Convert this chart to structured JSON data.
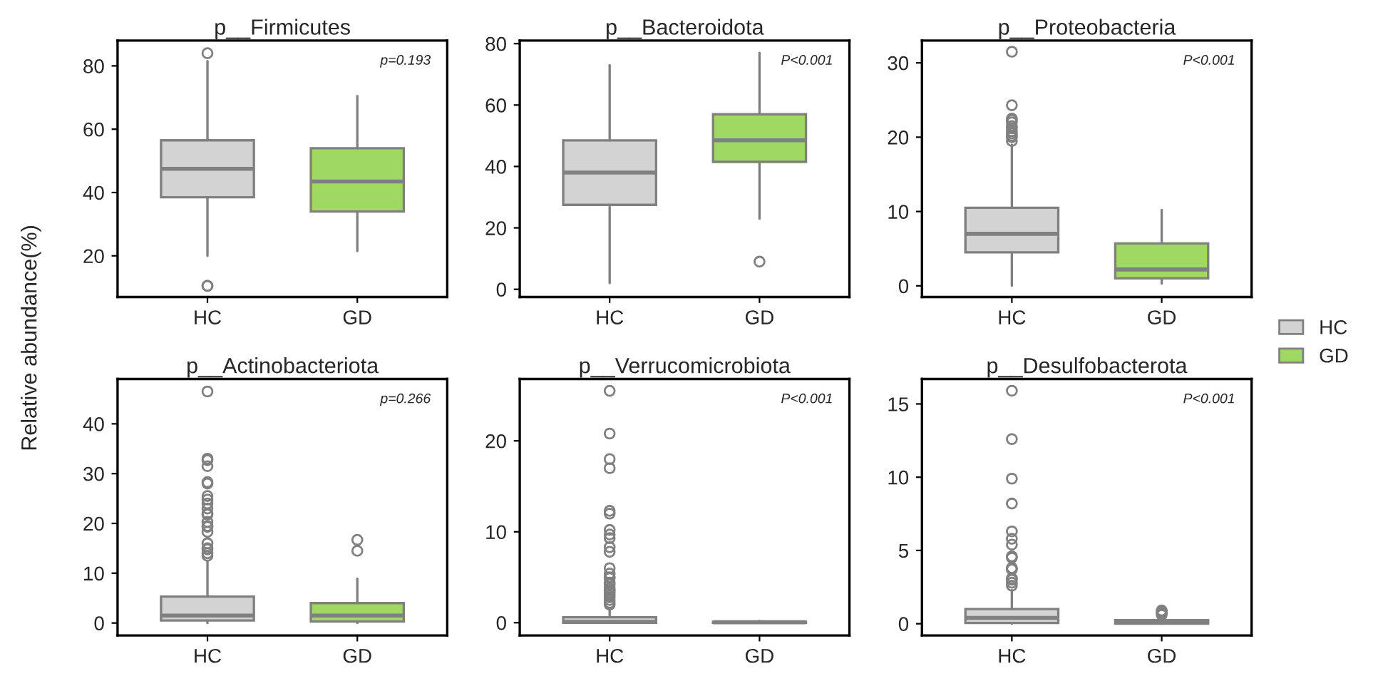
{
  "chart_data": [
    {
      "type": "box",
      "title": "p__Firmicutes",
      "ylabel": "Relative abundance(%)",
      "categories": [
        "HC",
        "GD"
      ],
      "ylim": [
        7,
        88
      ],
      "yticks": [
        20,
        40,
        60,
        80
      ],
      "annotations": [
        "p=0.193"
      ],
      "grid": false,
      "legend": false,
      "series": [
        {
          "color": "#d3d3d3",
          "boxes": [
            {
              "low": 20,
              "q1": 38.5,
              "median": 47.5,
              "q3": 56.5,
              "high": 81.5,
              "outliers": [
                84,
                10.5,
                10.5
              ]
            },
            null
          ]
        },
        {
          "color": "#9fd964",
          "boxes": [
            null,
            {
              "low": 21.5,
              "q1": 34,
              "median": 43.5,
              "q3": 54,
              "high": 70.5
            }
          ]
        }
      ]
    },
    {
      "type": "box",
      "title": "p__Bacteroidota",
      "categories": [
        "HC",
        "GD"
      ],
      "ylim": [
        -2.5,
        81
      ],
      "yticks": [
        0,
        20,
        40,
        60,
        80
      ],
      "annotations": [
        "P<0.001"
      ],
      "grid": false,
      "legend": false,
      "series": [
        {
          "color": "#d3d3d3",
          "boxes": [
            {
              "low": 2,
              "q1": 27.5,
              "median": 38,
              "q3": 48.5,
              "high": 73
            },
            null
          ]
        },
        {
          "color": "#9fd964",
          "boxes": [
            null,
            {
              "low": 23,
              "q1": 41.5,
              "median": 48.5,
              "q3": 57,
              "high": 77,
              "outliers": [
                9
              ]
            }
          ]
        }
      ]
    },
    {
      "type": "box",
      "title": "p__Proteobacteria",
      "categories": [
        "HC",
        "GD"
      ],
      "ylim": [
        -1.5,
        33
      ],
      "yticks": [
        0,
        10,
        20,
        30
      ],
      "annotations": [
        "P<0.001"
      ],
      "grid": false,
      "legend": "right",
      "series": [
        {
          "name": "HC",
          "color": "#d3d3d3",
          "boxes": [
            {
              "low": 0,
              "q1": 4.5,
              "median": 7,
              "q3": 10.5,
              "high": 19,
              "outliers": [
                31.5,
                24.3,
                22.5,
                22.3,
                22,
                21.5,
                21.2,
                20.8,
                20.5,
                20.2,
                20,
                19.5
              ]
            },
            null
          ]
        },
        {
          "name": "GD",
          "color": "#9fd964",
          "boxes": [
            null,
            {
              "low": 0.3,
              "q1": 1,
              "median": 2.2,
              "q3": 5.7,
              "high": 10.2
            }
          ]
        }
      ]
    },
    {
      "type": "box",
      "title": "p__Actinobacteriota",
      "categories": [
        "HC",
        "GD"
      ],
      "ylim": [
        -2.5,
        49
      ],
      "yticks": [
        0,
        10,
        20,
        30,
        40
      ],
      "annotations": [
        "p=0.266"
      ],
      "grid": false,
      "legend": false,
      "series": [
        {
          "color": "#d3d3d3",
          "boxes": [
            {
              "low": 0,
              "q1": 0.5,
              "median": 1.5,
              "q3": 5.3,
              "high": 12.5,
              "outliers": [
                46.5,
                33,
                32.7,
                31.5,
                28.3,
                28,
                25.5,
                24.8,
                24,
                23,
                22,
                21.8,
                20.3,
                19.5,
                19.3,
                18.3,
                16,
                15,
                14.8,
                14,
                13.5
              ]
            },
            null
          ]
        },
        {
          "color": "#9fd964",
          "boxes": [
            null,
            {
              "low": 0,
              "q1": 0.3,
              "median": 1.5,
              "q3": 4,
              "high": 8.9,
              "outliers": [
                16.7,
                14.5
              ]
            }
          ]
        }
      ]
    },
    {
      "type": "box",
      "title": "p__Verrucomicrobiota",
      "categories": [
        "HC",
        "GD"
      ],
      "ylim": [
        -1.4,
        26.8
      ],
      "yticks": [
        0,
        10,
        20
      ],
      "annotations": [
        "P<0.001"
      ],
      "grid": false,
      "legend": false,
      "series": [
        {
          "color": "#d3d3d3",
          "boxes": [
            {
              "low": 0,
              "q1": 0,
              "median": 0.1,
              "q3": 0.6,
              "high": 1.4,
              "outliers": [
                25.5,
                20.8,
                18,
                17,
                12.3,
                12,
                10.2,
                9.7,
                9.3,
                8.3,
                7.8,
                6,
                5.4,
                5,
                4.9,
                4.4,
                4.2,
                3.8,
                3.6,
                3.5,
                3.3,
                3,
                2.8,
                2.5,
                2.2,
                2
              ]
            },
            null
          ]
        },
        {
          "color": "#9fd964",
          "boxes": [
            null,
            {
              "low": 0,
              "q1": 0,
              "median": 0.05,
              "q3": 0.1,
              "high": 0.2
            }
          ]
        }
      ]
    },
    {
      "type": "box",
      "title": "p__Desulfobacterota",
      "categories": [
        "HC",
        "GD"
      ],
      "ylim": [
        -0.8,
        16.7
      ],
      "yticks": [
        0,
        5,
        10,
        15
      ],
      "annotations": [
        "P<0.001"
      ],
      "grid": false,
      "legend": false,
      "series": [
        {
          "color": "#d3d3d3",
          "boxes": [
            {
              "low": 0,
              "q1": 0.05,
              "median": 0.4,
              "q3": 1,
              "high": 2.3,
              "outliers": [
                15.9,
                12.6,
                9.9,
                8.2,
                6.3,
                5.8,
                5.4,
                4.6,
                4.5,
                3.8,
                3.8,
                3.7,
                3.1,
                3,
                2.8,
                2.6
              ]
            },
            null
          ]
        },
        {
          "color": "#9fd964",
          "boxes": [
            null,
            {
              "low": 0,
              "q1": 0,
              "median": 0.1,
              "q3": 0.25,
              "high": 0.5,
              "outliers": [
                0.9,
                0.8,
                0.7,
                0.6
              ]
            }
          ]
        }
      ]
    }
  ]
}
